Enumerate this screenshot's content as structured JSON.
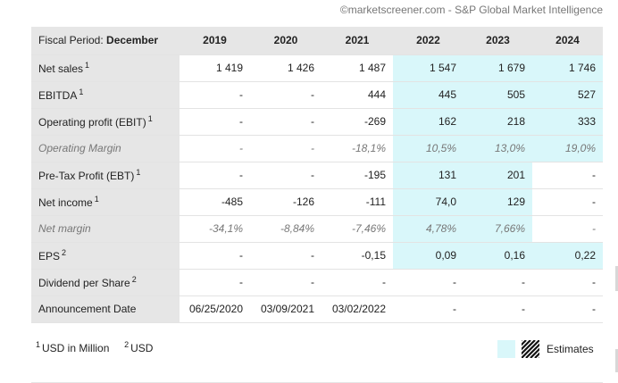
{
  "credit": "©marketscreener.com - S&P Global Market Intelligence",
  "header": {
    "period_label": "Fiscal Period:",
    "period_value": "December",
    "years": [
      "2019",
      "2020",
      "2021",
      "2022",
      "2023",
      "2024"
    ]
  },
  "rows": [
    {
      "label": "Net sales",
      "note": "1",
      "values": [
        "1 419",
        "1 426",
        "1 487",
        "1 547",
        "1 679",
        "1 746"
      ],
      "estimates": [
        false,
        false,
        false,
        true,
        true,
        true
      ],
      "italic": false
    },
    {
      "label": "EBITDA",
      "note": "1",
      "values": [
        "-",
        "-",
        "444",
        "445",
        "505",
        "527"
      ],
      "estimates": [
        false,
        false,
        false,
        true,
        true,
        true
      ],
      "italic": false
    },
    {
      "label": "Operating profit (EBIT)",
      "note": "1",
      "values": [
        "-",
        "-",
        "-269",
        "162",
        "218",
        "333"
      ],
      "estimates": [
        false,
        false,
        false,
        true,
        true,
        true
      ],
      "italic": false
    },
    {
      "label": "Operating Margin",
      "note": "",
      "values": [
        "-",
        "-",
        "-18,1%",
        "10,5%",
        "13,0%",
        "19,0%"
      ],
      "estimates": [
        false,
        false,
        false,
        true,
        true,
        true
      ],
      "italic": true
    },
    {
      "label": "Pre-Tax Profit (EBT)",
      "note": "1",
      "values": [
        "-",
        "-",
        "-195",
        "131",
        "201",
        "-"
      ],
      "estimates": [
        false,
        false,
        false,
        true,
        true,
        false
      ],
      "italic": false
    },
    {
      "label": "Net income",
      "note": "1",
      "values": [
        "-485",
        "-126",
        "-111",
        "74,0",
        "129",
        "-"
      ],
      "estimates": [
        false,
        false,
        false,
        true,
        true,
        false
      ],
      "italic": false
    },
    {
      "label": "Net margin",
      "note": "",
      "values": [
        "-34,1%",
        "-8,84%",
        "-7,46%",
        "4,78%",
        "7,66%",
        "-"
      ],
      "estimates": [
        false,
        false,
        false,
        true,
        true,
        false
      ],
      "italic": true
    },
    {
      "label": "EPS",
      "note": "2",
      "values": [
        "-",
        "-",
        "-0,15",
        "0,09",
        "0,16",
        "0,22"
      ],
      "estimates": [
        false,
        false,
        false,
        true,
        true,
        true
      ],
      "italic": false
    },
    {
      "label": "Dividend per Share",
      "note": "2",
      "values": [
        "-",
        "-",
        "-",
        "-",
        "-",
        "-"
      ],
      "estimates": [
        false,
        false,
        false,
        false,
        false,
        false
      ],
      "italic": false
    },
    {
      "label": "Announcement Date",
      "note": "",
      "values": [
        "06/25/2020",
        "03/09/2021",
        "03/02/2022",
        "-",
        "-",
        "-"
      ],
      "estimates": [
        false,
        false,
        false,
        false,
        false,
        false
      ],
      "italic": false
    }
  ],
  "footnotes": {
    "n1_mark": "1",
    "n1_text": "USD in Million",
    "n2_mark": "2",
    "n2_text": "USD"
  },
  "legend": {
    "estimates_label": "Estimates",
    "estimate_color": "#d9f7fa"
  }
}
